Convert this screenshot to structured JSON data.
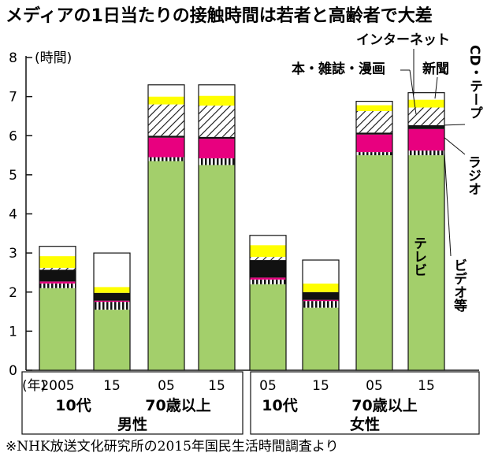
{
  "chart_data": {
    "type": "stacked-bar",
    "title": "メディアの1日当たりの接触時間は若者と高齢者で大差",
    "ylabel": "(時間)",
    "ylim": [
      0,
      8
    ],
    "y_ticks": [
      "0",
      "1",
      "2",
      "3",
      "4",
      "5",
      "6",
      "7",
      "8"
    ],
    "x_unit_label": "(年)",
    "categories": [
      "2005",
      "15",
      "05",
      "15",
      "05",
      "15",
      "05",
      "15"
    ],
    "age_groups": [
      "10代",
      "70歳以上",
      "10代",
      "70歳以上"
    ],
    "sexes": [
      "男性",
      "女性"
    ],
    "series": [
      {
        "name": "テレビ",
        "color": "#a3cf6b",
        "values": [
          2.1,
          1.55,
          5.35,
          5.25,
          2.2,
          1.6,
          5.5,
          5.5
        ]
      },
      {
        "name": "ビデオ等",
        "color": "#ffffff",
        "values": [
          0.12,
          0.2,
          0.1,
          0.17,
          0.12,
          0.17,
          0.08,
          0.12
        ]
      },
      {
        "name": "ラジオ",
        "color": "#e8007f",
        "values": [
          0.05,
          0.03,
          0.5,
          0.5,
          0.05,
          0.03,
          0.45,
          0.55
        ]
      },
      {
        "name": "CD・テープ",
        "color": "#111111",
        "values": [
          0.3,
          0.2,
          0.05,
          0.05,
          0.45,
          0.2,
          0.05,
          0.1
        ]
      },
      {
        "name": "本・雑誌・漫画",
        "color": "#ffffff",
        "values": [
          0.05,
          0.0,
          0.8,
          0.8,
          0.08,
          0.0,
          0.55,
          0.45
        ]
      },
      {
        "name": "新聞",
        "color": "#ffff00",
        "values": [
          0.3,
          0.15,
          0.2,
          0.25,
          0.3,
          0.22,
          0.15,
          0.2
        ]
      },
      {
        "name": "インターネット",
        "color": "#ffffff",
        "values": [
          0.25,
          0.87,
          0.3,
          0.28,
          0.25,
          0.6,
          0.1,
          0.18
        ]
      }
    ],
    "totals": [
      3.17,
      3.0,
      7.3,
      7.3,
      3.45,
      2.82,
      6.88,
      7.1
    ]
  },
  "note": "※NHK放送文化研究所の2015年国民生活時間調査より"
}
